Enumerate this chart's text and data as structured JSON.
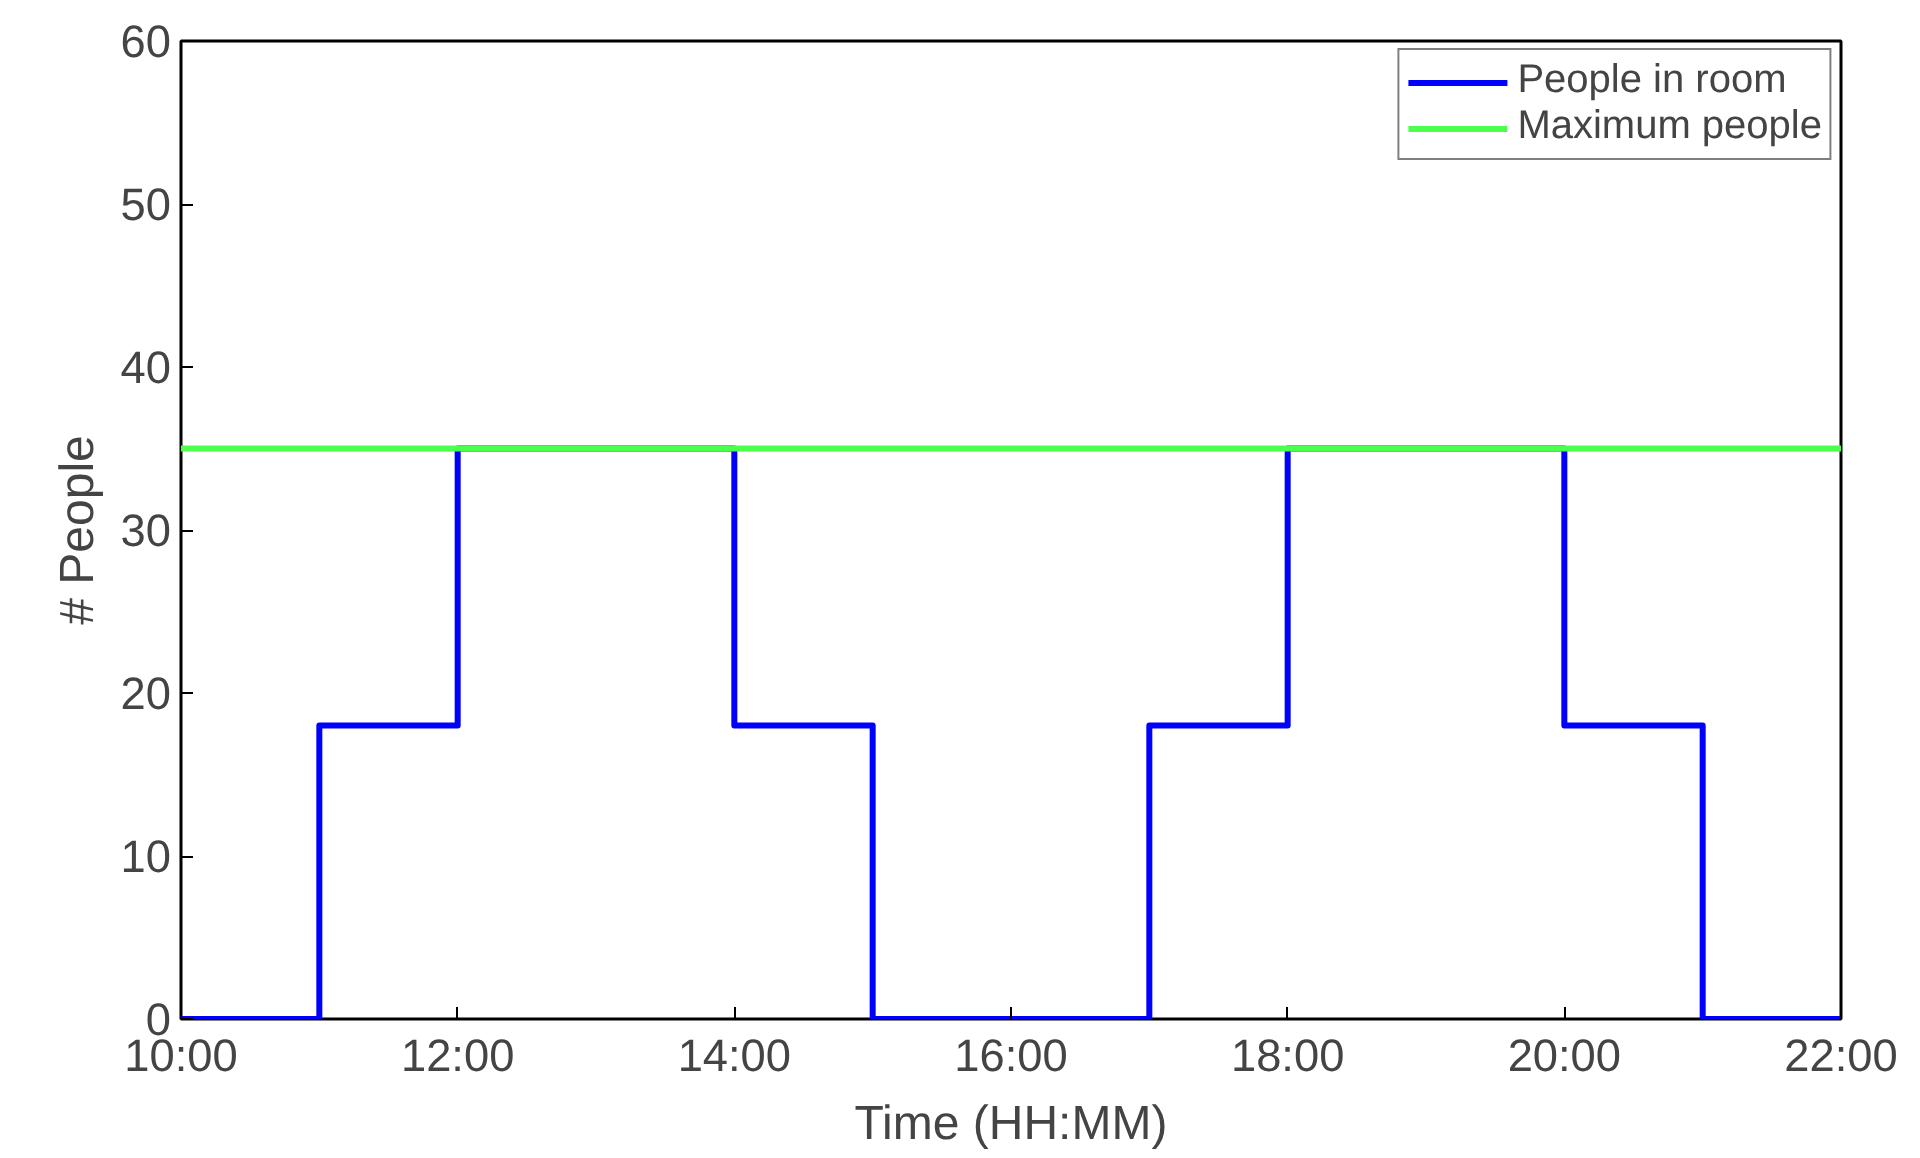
{
  "chart_data": {
    "type": "step",
    "xlabel": "Time (HH:MM)",
    "ylabel": "# People",
    "xlim": [
      10,
      22
    ],
    "ylim": [
      0,
      60
    ],
    "xticks": [
      {
        "value": 10,
        "label": "10:00"
      },
      {
        "value": 12,
        "label": "12:00"
      },
      {
        "value": 14,
        "label": "14:00"
      },
      {
        "value": 16,
        "label": "16:00"
      },
      {
        "value": 18,
        "label": "18:00"
      },
      {
        "value": 20,
        "label": "20:00"
      },
      {
        "value": 22,
        "label": "22:00"
      }
    ],
    "yticks": [
      0,
      10,
      20,
      30,
      40,
      50,
      60
    ],
    "series": [
      {
        "name": "People in room",
        "color": "#0000ff",
        "x": [
          10,
          11,
          12,
          14,
          15,
          17,
          18,
          20,
          21,
          22
        ],
        "values": [
          0,
          18,
          35,
          18,
          0,
          18,
          35,
          18,
          0,
          0
        ]
      },
      {
        "name": "Maximum people",
        "color": "#4dff4d",
        "type": "line",
        "x": [
          10,
          22
        ],
        "values": [
          35,
          35
        ]
      }
    ],
    "legend": "top right",
    "grid": false
  }
}
